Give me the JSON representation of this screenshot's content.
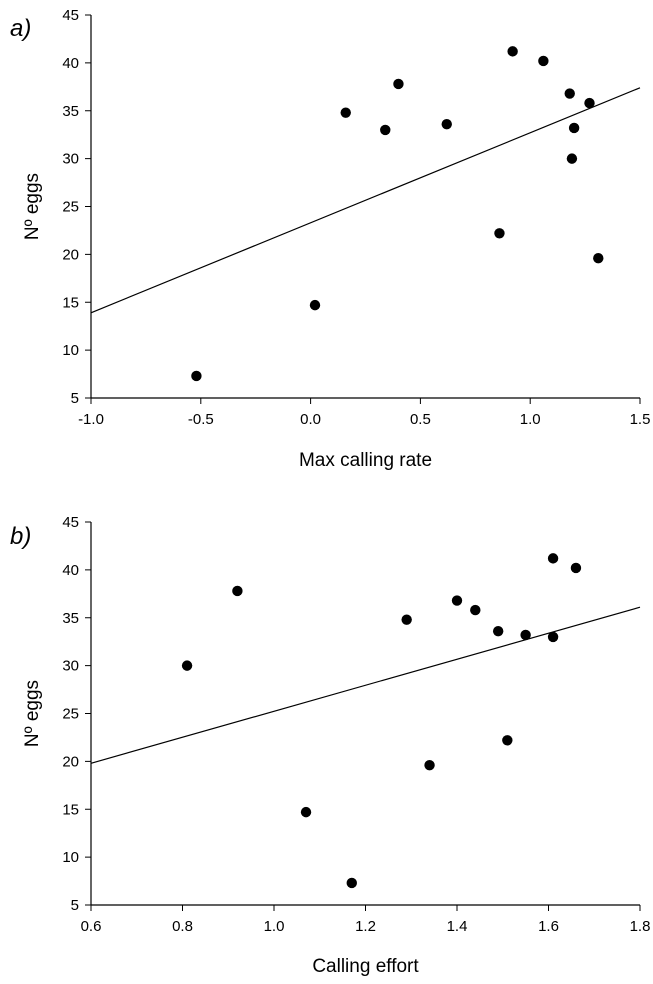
{
  "chart_data": [
    {
      "type": "scatter",
      "panel_label": "a)",
      "xlabel": "Max calling rate",
      "ylabel": "Nº eggs",
      "xlim": [
        -1.0,
        1.5
      ],
      "ylim": [
        5,
        45
      ],
      "xticks": [
        "-1.0",
        "-0.5",
        "0.0",
        "0.5",
        "1.0",
        "1.5"
      ],
      "yticks": [
        "5",
        "10",
        "15",
        "20",
        "25",
        "30",
        "35",
        "40",
        "45"
      ],
      "points": [
        {
          "x": -0.52,
          "y": 7.3
        },
        {
          "x": 0.02,
          "y": 14.7
        },
        {
          "x": 0.16,
          "y": 34.8
        },
        {
          "x": 0.34,
          "y": 33.0
        },
        {
          "x": 0.4,
          "y": 37.8
        },
        {
          "x": 0.62,
          "y": 33.6
        },
        {
          "x": 0.86,
          "y": 22.2
        },
        {
          "x": 0.92,
          "y": 41.2
        },
        {
          "x": 1.06,
          "y": 40.2
        },
        {
          "x": 1.18,
          "y": 36.8
        },
        {
          "x": 1.19,
          "y": 30.0
        },
        {
          "x": 1.2,
          "y": 33.2
        },
        {
          "x": 1.27,
          "y": 35.8
        },
        {
          "x": 1.31,
          "y": 19.6
        }
      ],
      "fit_line": {
        "x": [
          -1.0,
          1.5
        ],
        "y": [
          13.9,
          37.4
        ]
      },
      "grid": false,
      "legend": "none"
    },
    {
      "type": "scatter",
      "panel_label": "b)",
      "xlabel": "Calling effort",
      "ylabel": "Nº eggs",
      "xlim": [
        0.6,
        1.8
      ],
      "ylim": [
        5,
        45
      ],
      "xticks": [
        "0.6",
        "0.8",
        "1.0",
        "1.2",
        "1.4",
        "1.6",
        "1.8"
      ],
      "yticks": [
        "5",
        "10",
        "15",
        "20",
        "25",
        "30",
        "35",
        "40",
        "45"
      ],
      "points": [
        {
          "x": 0.81,
          "y": 30.0
        },
        {
          "x": 0.92,
          "y": 37.8
        },
        {
          "x": 1.07,
          "y": 14.7
        },
        {
          "x": 1.17,
          "y": 7.3
        },
        {
          "x": 1.29,
          "y": 34.8
        },
        {
          "x": 1.34,
          "y": 19.6
        },
        {
          "x": 1.4,
          "y": 36.8
        },
        {
          "x": 1.44,
          "y": 35.8
        },
        {
          "x": 1.49,
          "y": 33.6
        },
        {
          "x": 1.51,
          "y": 22.2
        },
        {
          "x": 1.55,
          "y": 33.2
        },
        {
          "x": 1.61,
          "y": 41.2
        },
        {
          "x": 1.61,
          "y": 33.0
        },
        {
          "x": 1.66,
          "y": 40.2
        }
      ],
      "fit_line": {
        "x": [
          0.6,
          1.8
        ],
        "y": [
          19.8,
          36.1
        ]
      },
      "grid": false,
      "legend": "none"
    }
  ]
}
